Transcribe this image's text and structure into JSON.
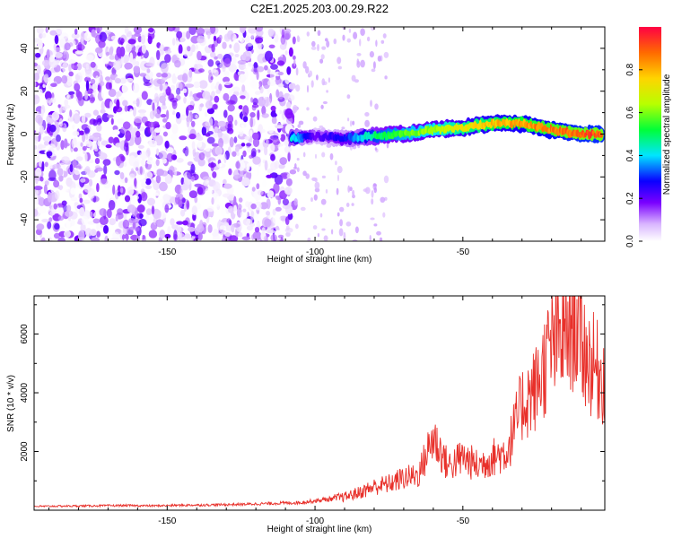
{
  "title": "C2E1.2025.203.00.29.R22",
  "chart_data": [
    {
      "type": "heatmap",
      "xlabel": "Height of straight line (km)",
      "ylabel": "Frequency (Hz)",
      "xlim": [
        -195,
        -2
      ],
      "ylim": [
        -50,
        50
      ],
      "xticks": [
        -150,
        -100,
        -50
      ],
      "yticks": [
        -40,
        -20,
        0,
        20,
        40
      ],
      "grid": false,
      "colorbar": {
        "label": "Normalized spectral amplitude",
        "range": [
          0,
          1
        ],
        "ticks": [
          0.0,
          0.2,
          0.4,
          0.6,
          0.8
        ]
      },
      "signal_ridge": {
        "x": [
          -108,
          -100,
          -90,
          -80,
          -70,
          -60,
          -50,
          -40,
          -30,
          -20,
          -10,
          -3
        ],
        "frequency": [
          -2,
          -1,
          -2,
          -1,
          0,
          2,
          3,
          5,
          5,
          2,
          0,
          0
        ],
        "amplitude": [
          0.45,
          0.2,
          0.3,
          0.5,
          0.6,
          0.65,
          0.75,
          0.8,
          0.85,
          0.9,
          0.95,
          0.95
        ]
      },
      "noise_region": {
        "x_range": [
          -195,
          -107
        ],
        "amplitude": "low"
      }
    },
    {
      "type": "line",
      "xlabel": "Height of straight line (km)",
      "ylabel": "SNR (10 * v/v)",
      "xlim": [
        -195,
        -2
      ],
      "ylim": [
        0,
        7300
      ],
      "xticks": [
        -150,
        -100,
        -50
      ],
      "yticks": [
        2000,
        4000,
        6000
      ],
      "grid": false,
      "series": [
        {
          "color": "#e8302a",
          "x": [
            -195,
            -185,
            -175,
            -165,
            -155,
            -145,
            -135,
            -125,
            -115,
            -105,
            -100,
            -95,
            -90,
            -85,
            -80,
            -75,
            -70,
            -65,
            -60,
            -55,
            -50,
            -45,
            -40,
            -35,
            -30,
            -25,
            -20,
            -15,
            -12,
            -8,
            -5,
            -2
          ],
          "values": [
            130,
            140,
            150,
            160,
            150,
            170,
            180,
            200,
            230,
            260,
            320,
            380,
            450,
            600,
            800,
            900,
            1100,
            1200,
            2500,
            1500,
            1800,
            1500,
            1800,
            2000,
            3600,
            4200,
            5600,
            6000,
            6500,
            5200,
            4800,
            4500
          ]
        }
      ]
    }
  ]
}
